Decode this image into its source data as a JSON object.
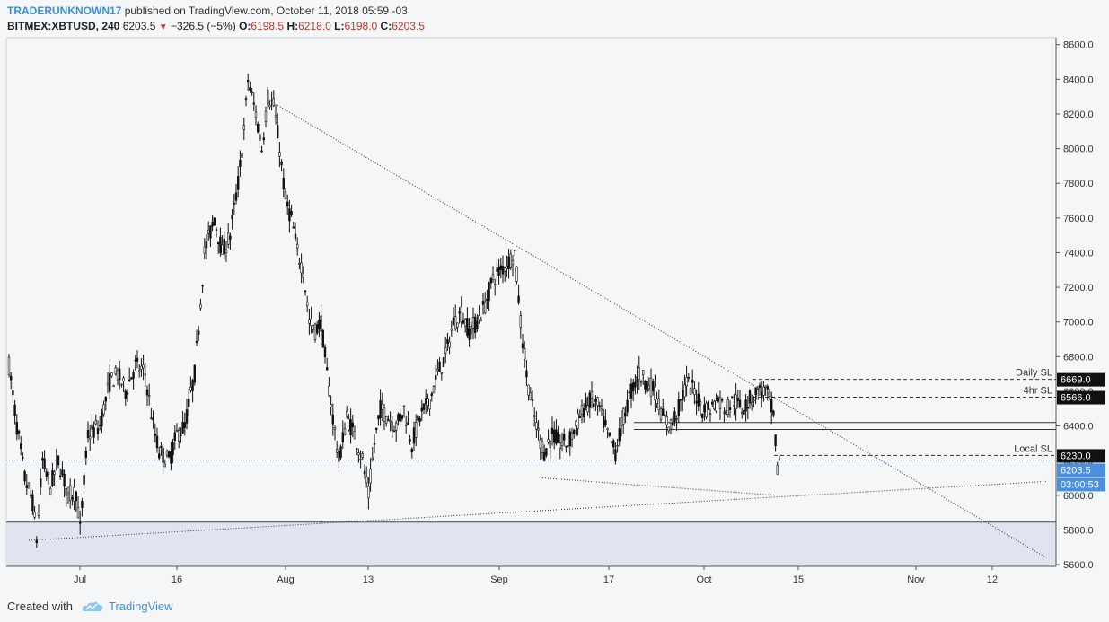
{
  "header": {
    "author": "TRADERUNKNOWN17",
    "published": "published on TradingView.com, October 11, 2018 05:59 -03",
    "symbol": "BITMEX:XBTUSD, 240",
    "last": "6203.5",
    "change": "−326.5 (−5%)",
    "o_label": "O:",
    "o": "6198.5",
    "h_label": "H:",
    "h": "6218.0",
    "l_label": "L:",
    "l": "6198.0",
    "c_label": "C:",
    "c": "6203.5"
  },
  "footer": {
    "created_with": "Created with",
    "brand": "TradingView"
  },
  "colors": {
    "accent": "#3f8fd6",
    "down": "#c0392b",
    "zone": "#dfe4ee"
  },
  "chart_data": {
    "type": "candlestick",
    "x_tick_labels": [
      "Jul",
      "16",
      "Aug",
      "13",
      "Sep",
      "17",
      "Oct",
      "15",
      "Nov",
      "12"
    ],
    "y_ticks": [
      5600,
      5800,
      6000,
      6200,
      6400,
      6600,
      6800,
      7000,
      7200,
      7400,
      7600,
      7800,
      8000,
      8200,
      8400,
      8600
    ],
    "ylim": [
      5590,
      8640
    ],
    "price_path": [
      [
        0,
        6750
      ],
      [
        4,
        6400
      ],
      [
        8,
        6100
      ],
      [
        12,
        5960
      ],
      [
        14,
        5750
      ],
      [
        17,
        6200
      ],
      [
        21,
        6050
      ],
      [
        25,
        6200
      ],
      [
        30,
        6000
      ],
      [
        34,
        6020
      ],
      [
        36,
        5800
      ],
      [
        40,
        6350
      ],
      [
        46,
        6400
      ],
      [
        51,
        6650
      ],
      [
        55,
        6700
      ],
      [
        59,
        6600
      ],
      [
        64,
        6750
      ],
      [
        69,
        6700
      ],
      [
        73,
        6400
      ],
      [
        76,
        6250
      ],
      [
        81,
        6200
      ],
      [
        85,
        6350
      ],
      [
        89,
        6400
      ],
      [
        94,
        6700
      ],
      [
        99,
        7400
      ],
      [
        104,
        7600
      ],
      [
        108,
        7400
      ],
      [
        112,
        7500
      ],
      [
        116,
        7800
      ],
      [
        119,
        8100
      ],
      [
        121,
        8400
      ],
      [
        123,
        8300
      ],
      [
        125,
        8200
      ],
      [
        128,
        8000
      ],
      [
        131,
        8300
      ],
      [
        134,
        8250
      ],
      [
        137,
        8000
      ],
      [
        140,
        7700
      ],
      [
        143,
        7600
      ],
      [
        146,
        7400
      ],
      [
        149,
        7300
      ],
      [
        152,
        7000
      ],
      [
        155,
        6950
      ],
      [
        158,
        7000
      ],
      [
        161,
        6700
      ],
      [
        164,
        6450
      ],
      [
        167,
        6200
      ],
      [
        171,
        6450
      ],
      [
        175,
        6350
      ],
      [
        179,
        6200
      ],
      [
        182,
        6000
      ],
      [
        185,
        6300
      ],
      [
        188,
        6500
      ],
      [
        192,
        6450
      ],
      [
        196,
        6400
      ],
      [
        200,
        6500
      ],
      [
        204,
        6300
      ],
      [
        208,
        6450
      ],
      [
        213,
        6550
      ],
      [
        217,
        6700
      ],
      [
        221,
        6800
      ],
      [
        225,
        7000
      ],
      [
        229,
        7050
      ],
      [
        233,
        6950
      ],
      [
        237,
        7000
      ],
      [
        241,
        7100
      ],
      [
        245,
        7250
      ],
      [
        249,
        7300
      ],
      [
        253,
        7350
      ],
      [
        256,
        7400
      ],
      [
        259,
        7000
      ],
      [
        262,
        6700
      ],
      [
        265,
        6500
      ],
      [
        268,
        6350
      ],
      [
        271,
        6250
      ],
      [
        275,
        6350
      ],
      [
        279,
        6300
      ],
      [
        283,
        6300
      ],
      [
        287,
        6400
      ],
      [
        291,
        6500
      ],
      [
        295,
        6550
      ],
      [
        299,
        6500
      ],
      [
        303,
        6350
      ],
      [
        307,
        6250
      ],
      [
        311,
        6450
      ],
      [
        315,
        6600
      ],
      [
        319,
        6700
      ],
      [
        323,
        6650
      ],
      [
        327,
        6600
      ],
      [
        331,
        6450
      ],
      [
        335,
        6400
      ],
      [
        339,
        6500
      ],
      [
        343,
        6650
      ],
      [
        347,
        6600
      ],
      [
        351,
        6500
      ],
      [
        355,
        6500
      ],
      [
        359,
        6550
      ],
      [
        363,
        6500
      ],
      [
        367,
        6550
      ],
      [
        371,
        6500
      ],
      [
        375,
        6550
      ],
      [
        379,
        6600
      ],
      [
        383,
        6600
      ],
      [
        385,
        6550
      ],
      [
        387,
        6450
      ],
      [
        388,
        6300
      ],
      [
        389,
        6150
      ],
      [
        390,
        6203.5
      ]
    ],
    "trendlines": [
      {
        "name": "descending-resistance",
        "from": [
          136,
          8250
        ],
        "to": [
          525,
          5640
        ]
      },
      {
        "name": "ascending-support",
        "from": [
          10,
          5740
        ],
        "to": [
          525,
          6080
        ]
      },
      {
        "name": "lower-support",
        "from": [
          270,
          6100
        ],
        "to": [
          388,
          6000
        ]
      }
    ],
    "horizontal_lines": [
      {
        "label": "Daily SL",
        "value": 6669.0,
        "style": "dashed"
      },
      {
        "label": "4hr SL",
        "value": 6566.0,
        "style": "dashed"
      },
      {
        "label": "Local SL",
        "value": 6230.0,
        "style": "dashed"
      },
      {
        "label": "",
        "value": 6420.0,
        "style": "solid"
      },
      {
        "label": "",
        "value": 6380.0,
        "style": "solid"
      }
    ],
    "price_tags": [
      {
        "value": 6669.0,
        "text": "6669.0"
      },
      {
        "value": 6566.0,
        "text": "6566.0"
      },
      {
        "value": 6230.0,
        "text": "6230.0"
      },
      {
        "value": 6203.5,
        "text": "6203.5",
        "accent": true
      },
      {
        "value": 6103.5,
        "text": "03:00:53",
        "accent": true
      }
    ],
    "demand_zone": {
      "top": 5845,
      "bottom": 5590
    },
    "current_price": 6203.5
  }
}
